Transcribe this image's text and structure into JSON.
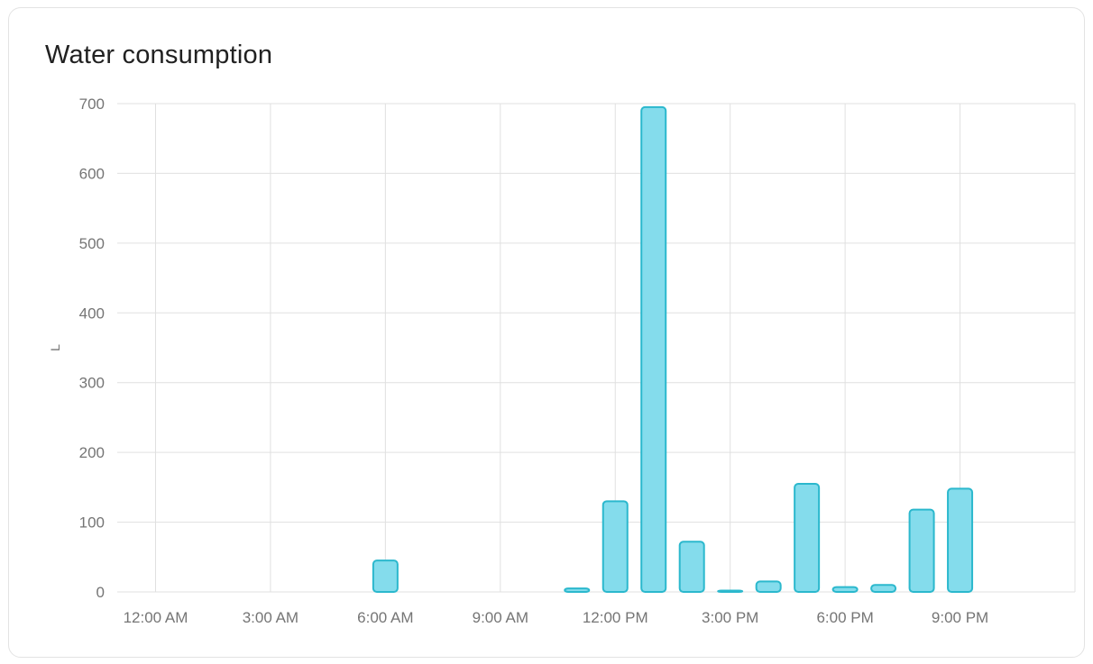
{
  "card": {
    "title": "Water consumption"
  },
  "chart_data": {
    "type": "bar",
    "title": "Water consumption",
    "xlabel": "",
    "ylabel": "L",
    "ylim": [
      0,
      700
    ],
    "y_ticks": [
      0,
      100,
      200,
      300,
      400,
      500,
      600,
      700
    ],
    "x_tick_hours": [
      0,
      3,
      6,
      9,
      12,
      15,
      18,
      21
    ],
    "x_tick_labels": [
      "12:00 AM",
      "3:00 AM",
      "6:00 AM",
      "9:00 AM",
      "12:00 PM",
      "3:00 PM",
      "6:00 PM",
      "9:00 PM"
    ],
    "hours": [
      0,
      1,
      2,
      3,
      4,
      5,
      6,
      7,
      8,
      9,
      10,
      11,
      12,
      13,
      14,
      15,
      16,
      17,
      18,
      19,
      20,
      21,
      22,
      23
    ],
    "values": [
      0,
      0,
      0,
      0,
      0,
      0,
      45,
      0,
      0,
      0,
      0,
      5,
      130,
      695,
      72,
      2,
      15,
      155,
      7,
      10,
      118,
      148,
      0,
      0
    ],
    "grid": true,
    "legend": false,
    "colors": {
      "bar_fill": "#84dcec",
      "bar_stroke": "#2bb8cd",
      "grid": "#e0e0e0",
      "tick_label": "#757575",
      "axis_label": "#757575",
      "title": "#212121"
    }
  }
}
